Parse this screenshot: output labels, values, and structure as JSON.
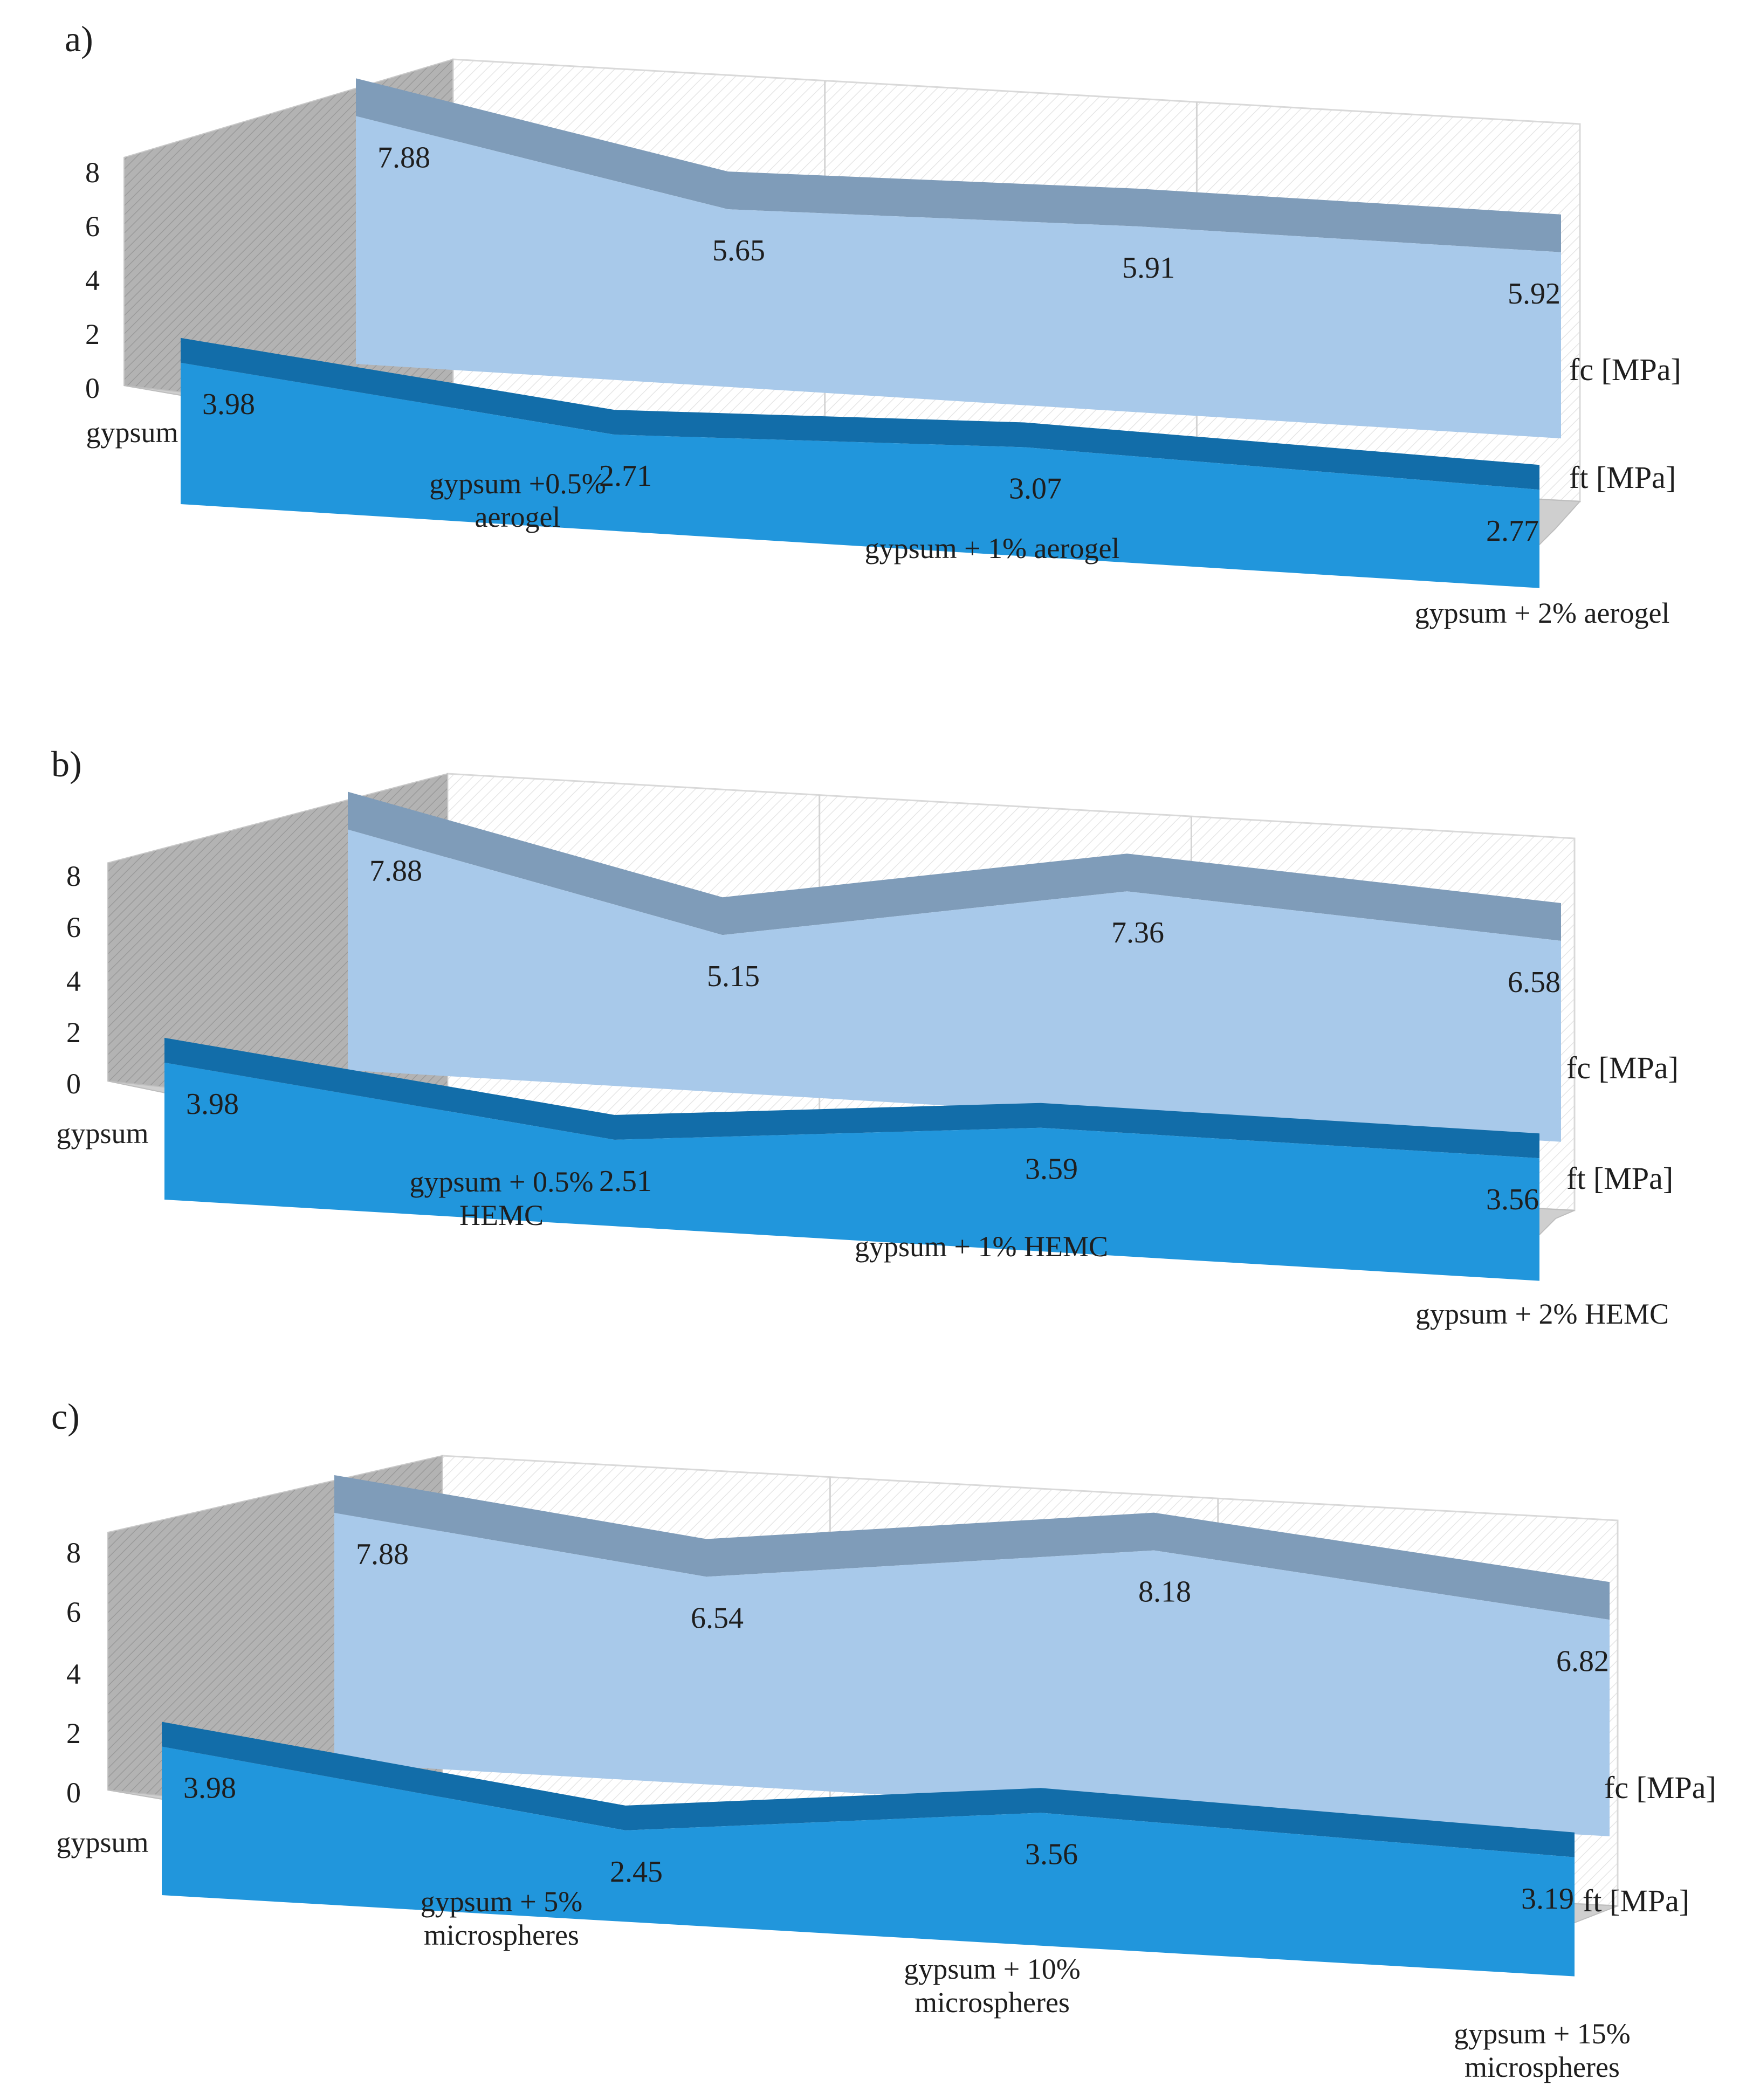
{
  "figure": {
    "panel_labels": [
      "a)",
      "b)",
      "c)"
    ]
  },
  "chart_data": [
    {
      "type": "area",
      "three_d": true,
      "categories": [
        [
          "gypsum"
        ],
        [
          "gypsum +0.5%",
          "aerogel"
        ],
        [
          "gypsum + 1% aerogel"
        ],
        [
          "gypsum + 2% aerogel"
        ]
      ],
      "series": [
        {
          "name": "fc [MPa]",
          "values": [
            7.88,
            5.65,
            5.91,
            5.92
          ],
          "color": "#a8c9ea",
          "top_color": "#7f9cb9"
        },
        {
          "name": "ft [MPa]",
          "values": [
            3.98,
            2.71,
            3.07,
            2.77
          ],
          "color": "#2196dc",
          "top_color": "#126da9"
        }
      ],
      "y_ticks": [
        0,
        2,
        4,
        6,
        8
      ],
      "ylim": [
        0,
        9
      ],
      "grid": true,
      "legend_position": "right"
    },
    {
      "type": "area",
      "three_d": true,
      "categories": [
        [
          "gypsum"
        ],
        [
          "gypsum + 0.5%",
          "HEMC"
        ],
        [
          "gypsum + 1% HEMC"
        ],
        [
          "gypsum + 2% HEMC"
        ]
      ],
      "series": [
        {
          "name": "fc [MPa]",
          "values": [
            7.88,
            5.15,
            7.36,
            6.58
          ],
          "color": "#a8c9ea",
          "top_color": "#7f9cb9"
        },
        {
          "name": "ft [MPa]",
          "values": [
            3.98,
            2.51,
            3.59,
            3.56
          ],
          "color": "#2196dc",
          "top_color": "#126da9"
        }
      ],
      "y_ticks": [
        0,
        2,
        4,
        6,
        8
      ],
      "ylim": [
        0,
        9
      ],
      "grid": true,
      "legend_position": "right"
    },
    {
      "type": "area",
      "three_d": true,
      "categories": [
        [
          "gypsum"
        ],
        [
          "gypsum + 5%",
          "microspheres"
        ],
        [
          "gypsum + 10%",
          "microspheres"
        ],
        [
          "gypsum + 15%",
          "microspheres"
        ]
      ],
      "series": [
        {
          "name": "fc [MPa]",
          "values": [
            7.88,
            6.54,
            8.18,
            6.82
          ],
          "color": "#a8c9ea",
          "top_color": "#7f9cb9"
        },
        {
          "name": "ft [MPa]",
          "values": [
            3.98,
            2.45,
            3.56,
            3.19
          ],
          "color": "#2196dc",
          "top_color": "#126da9"
        }
      ],
      "y_ticks": [
        0,
        2,
        4,
        6,
        8
      ],
      "ylim": [
        0,
        9
      ],
      "grid": true,
      "legend_position": "right"
    }
  ]
}
